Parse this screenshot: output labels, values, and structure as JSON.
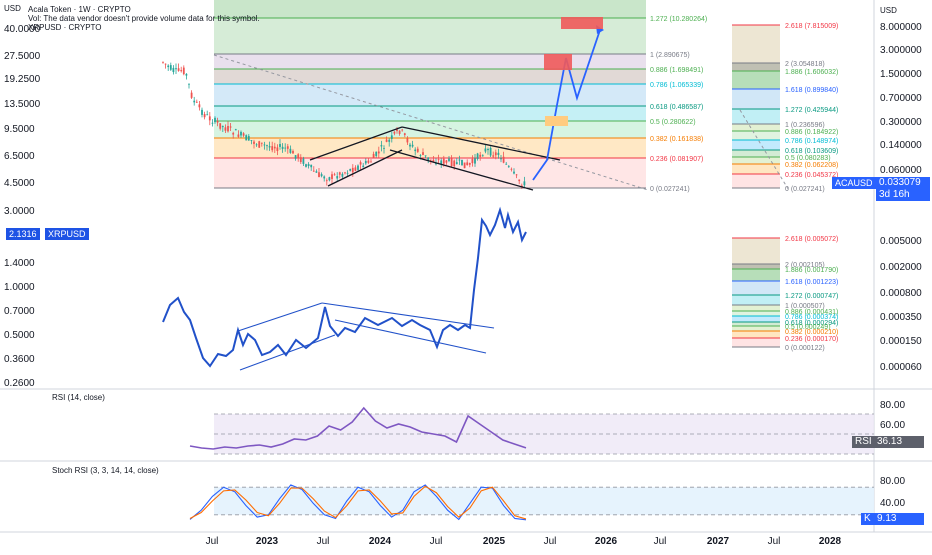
{
  "header": {
    "usd_left": "USD",
    "usd_right": "USD",
    "line1": "Acala Token · 1W · CRYPTO",
    "line2": "Vol: The data vendor doesn't provide volume data for this symbol.",
    "line3": "XRPUSD · CRYPTO"
  },
  "badges": {
    "acausd_label": "ACAUSD",
    "acausd_value": "0.033079",
    "acausd_countdown": "3d 16h",
    "xrp_value": "2.1316",
    "xrp_label": "XRPUSD",
    "rsi_label": "RSI",
    "rsi_value": "36.13",
    "k_label": "K",
    "k_value": "9.13"
  },
  "panes": {
    "rsi_title": "RSI (14, close)",
    "stoch_title": "Stoch RSI (3, 3, 14, 14, close)"
  },
  "colors": {
    "aca_candle_up": "#26a69a",
    "aca_candle_down": "#ef5350",
    "xrp_line": "#2151c9",
    "projection": "#2962ff",
    "rsi_line": "#7e57c2",
    "stoch_k": "#2962ff",
    "stoch_d": "#ff6d00"
  },
  "chart_data": [
    {
      "type": "line",
      "series": [
        {
          "name": "XRPUSD",
          "x": [
            "2022-07",
            "2022-08",
            "2022-09",
            "2022-10",
            "2022-11",
            "2022-12",
            "2023-01",
            "2023-03",
            "2023-05",
            "2023-07",
            "2023-08",
            "2023-10",
            "2023-12",
            "2024-01",
            "2024-03",
            "2024-05",
            "2024-07",
            "2024-09",
            "2024-11",
            "2024-12",
            "2025-01",
            "2025-02",
            "2025-03"
          ],
          "values": [
            0.36,
            0.34,
            0.48,
            0.46,
            0.38,
            0.35,
            0.4,
            0.37,
            0.45,
            0.8,
            0.55,
            0.52,
            0.62,
            0.55,
            0.62,
            0.52,
            0.5,
            0.55,
            1.05,
            2.3,
            2.8,
            2.6,
            2.13
          ]
        }
      ],
      "y_scale": "log",
      "y_ticks": [
        "3.0000",
        "2.1316",
        "1.4000",
        "1.0000",
        "0.7000",
        "0.5000",
        "0.3600",
        "0.2600"
      ]
    },
    {
      "type": "candlestick",
      "series": [
        {
          "name": "ACAUSD",
          "x": [
            "2022-03",
            "2022-06",
            "2022-09",
            "2022-12",
            "2023-03",
            "2023-06",
            "2023-09",
            "2023-12",
            "2024-03",
            "2024-06",
            "2024-09",
            "2024-12",
            "2025-02"
          ],
          "values": [
            0.8,
            0.35,
            0.18,
            0.12,
            0.1,
            0.065,
            0.07,
            0.09,
            0.1,
            0.075,
            0.07,
            0.09,
            0.033079
          ]
        }
      ],
      "y_scale": "log",
      "y_ticks_left": [
        "40.0000",
        "27.5000",
        "19.2500",
        "13.5000",
        "9.5000",
        "6.5000",
        "4.5000"
      ],
      "y_ticks_right": [
        "8.000000",
        "3.000000",
        "1.500000",
        "0.700000",
        "0.300000",
        "0.140000",
        "0.060000",
        "0.033079",
        "0.005000",
        "0.002000",
        "0.000800",
        "0.000350",
        "0.000150",
        "0.000060"
      ],
      "x_ticks": [
        "Jul",
        "2023",
        "Jul",
        "2024",
        "Jul",
        "2025",
        "Jul",
        "2026",
        "Jul",
        "Jul",
        "2027",
        "Jul",
        "2028"
      ]
    },
    {
      "type": "fibonacci",
      "name": "main-fib",
      "levels": [
        {
          "label": "1.272 (10.280264)",
          "color": "#4caf50"
        },
        {
          "label": "1 (2.890675)",
          "color": "#787b86"
        },
        {
          "label": "0.886 (1.698491)",
          "color": "#4caf50"
        },
        {
          "label": "0.786 (1.065339)",
          "color": "#00bcd4"
        },
        {
          "label": "0.618 (0.486587)",
          "color": "#089981"
        },
        {
          "label": "0.5 (0.280622)",
          "color": "#4caf50"
        },
        {
          "label": "0.382 (0.161838)",
          "color": "#f57c00"
        },
        {
          "label": "0.236 (0.081907)",
          "color": "#f23645"
        },
        {
          "label": "0 (0.027241)",
          "color": "#787b86"
        }
      ]
    },
    {
      "type": "fibonacci",
      "name": "aca-right-fib",
      "levels": [
        {
          "label": "2.618 (7.815009)",
          "color": "#f23645"
        },
        {
          "label": "2 (3.054818)",
          "color": "#787b86"
        },
        {
          "label": "1.886 (1.606032)",
          "color": "#4caf50"
        },
        {
          "label": "1.618 (0.899840)",
          "color": "#2962ff"
        },
        {
          "label": "1.272 (0.425944)",
          "color": "#089981"
        },
        {
          "label": "1 (0.236596)",
          "color": "#787b86"
        },
        {
          "label": "0.886 (0.184922)",
          "color": "#4caf50"
        },
        {
          "label": "0.786 (0.148974)",
          "color": "#00bcd4"
        },
        {
          "label": "0.618 (0.103609)",
          "color": "#089981"
        },
        {
          "label": "0.5 (0.080283)",
          "color": "#4caf50"
        },
        {
          "label": "0.382 (0.062208)",
          "color": "#f57c00"
        },
        {
          "label": "0.236 (0.045372)",
          "color": "#f23645"
        },
        {
          "label": "0 (0.027241)",
          "color": "#787b86"
        }
      ]
    },
    {
      "type": "fibonacci",
      "name": "xrp-right-fib",
      "levels": [
        {
          "label": "2.618 (0.005072)",
          "color": "#f23645"
        },
        {
          "label": "2 (0.002105)",
          "color": "#787b86"
        },
        {
          "label": "1.886 (0.001790)",
          "color": "#4caf50"
        },
        {
          "label": "1.618 (0.001223)",
          "color": "#2962ff"
        },
        {
          "label": "1.272 (0.000747)",
          "color": "#089981"
        },
        {
          "label": "1 (0.000507)",
          "color": "#787b86"
        },
        {
          "label": "0.886 (0.000431)",
          "color": "#4caf50"
        },
        {
          "label": "0.786 (0.000374)",
          "color": "#00bcd4"
        },
        {
          "label": "0.618 (0.000294)",
          "color": "#089981"
        },
        {
          "label": "0.5 (0.000249)",
          "color": "#4caf50"
        },
        {
          "label": "0.382 (0.000210)",
          "color": "#f57c00"
        },
        {
          "label": "0.236 (0.000170)",
          "color": "#f23645"
        },
        {
          "label": "0 (0.000122)",
          "color": "#787b86"
        }
      ]
    },
    {
      "type": "line",
      "name": "RSI (14, close)",
      "y_ticks": [
        "80.00",
        "60.00",
        "40.00"
      ],
      "values": [
        38,
        36,
        35,
        37,
        36,
        38,
        39,
        37,
        40,
        45,
        44,
        48,
        58,
        54,
        62,
        76,
        63,
        56,
        60,
        57,
        52,
        50,
        48,
        42,
        68,
        60,
        52,
        44,
        40,
        36.13
      ]
    },
    {
      "type": "line",
      "name": "Stoch RSI (3, 3, 14, 14, close)",
      "y_ticks": [
        "80.00",
        "40.00"
      ],
      "series": [
        {
          "name": "K",
          "values": [
            10,
            30,
            60,
            80,
            70,
            40,
            15,
            20,
            55,
            85,
            75,
            45,
            20,
            12,
            50,
            80,
            70,
            40,
            15,
            30,
            70,
            85,
            60,
            30,
            10,
            45,
            80,
            78,
            40,
            12,
            9.13
          ]
        },
        {
          "name": "D",
          "values": [
            12,
            25,
            50,
            72,
            74,
            52,
            25,
            18,
            45,
            78,
            78,
            55,
            28,
            14,
            40,
            72,
            74,
            50,
            22,
            24,
            60,
            82,
            68,
            38,
            15,
            35,
            72,
            80,
            50,
            18,
            11
          ]
        }
      ]
    }
  ]
}
